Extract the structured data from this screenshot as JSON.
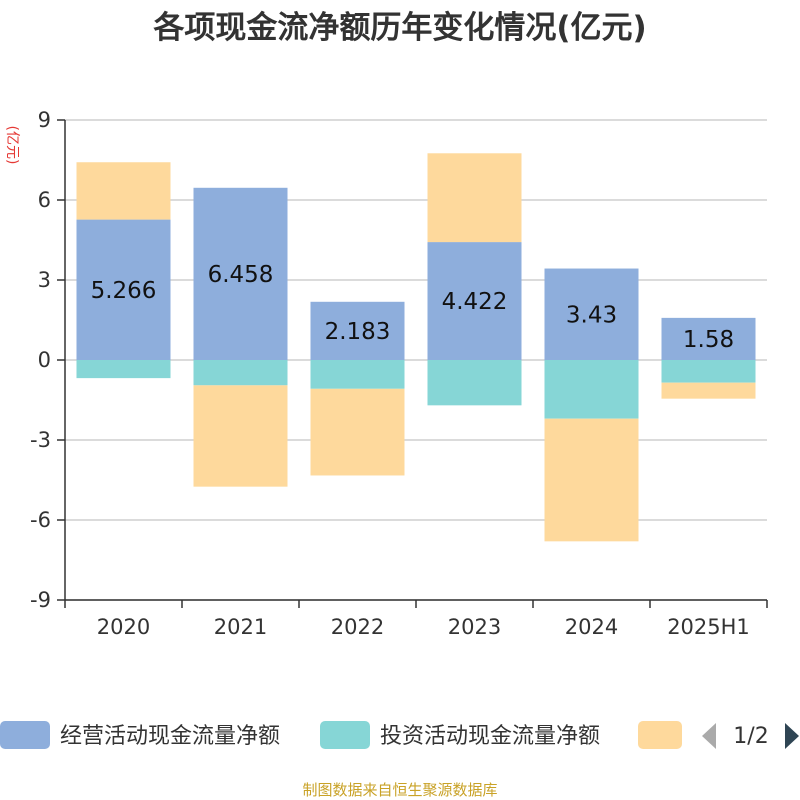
{
  "chart_data": {
    "type": "bar",
    "stacked": true,
    "title": "各项现金流净额历年变化情况(亿元)",
    "y_unit_label": "(亿元)",
    "categories": [
      "2020",
      "2021",
      "2022",
      "2023",
      "2024",
      "2025H1"
    ],
    "series": [
      {
        "name": "经营活动现金流量净额",
        "color": "#8eaedc",
        "values": [
          5.266,
          6.458,
          2.183,
          4.422,
          3.43,
          1.58
        ],
        "show_labels": true
      },
      {
        "name": "投资活动现金流量净额",
        "color": "#86d6d6",
        "values": [
          -0.68,
          -0.95,
          -1.08,
          -1.7,
          -2.2,
          -0.85
        ],
        "show_labels": false
      },
      {
        "name": "",
        "color": "#fed99c",
        "values": [
          2.15,
          -3.8,
          -3.25,
          3.33,
          -4.6,
          -0.6
        ],
        "show_labels": false
      }
    ],
    "ylim": [
      -9,
      9
    ],
    "yticks": [
      9,
      6,
      3,
      0,
      -3,
      -6,
      -9
    ],
    "ytick_labels": [
      "9",
      "6",
      "3",
      "0",
      "-3",
      "-6",
      "-9"
    ],
    "grid": true,
    "legend_position": "bottom"
  },
  "legend": {
    "page_indicator": "1/2"
  },
  "source_text": "制图数据来自恒生聚源数据库"
}
